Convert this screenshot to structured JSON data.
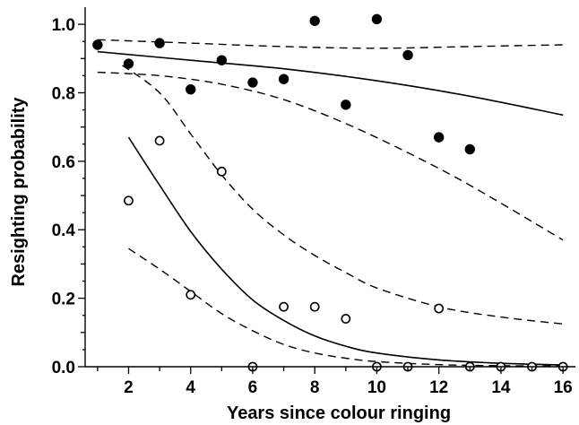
{
  "chart_data": {
    "type": "scatter",
    "title": "",
    "xlabel": "Years since colour ringing",
    "ylabel": "Resighting probability",
    "xlim": [
      0.6,
      16.4
    ],
    "ylim": [
      0.0,
      1.05
    ],
    "x_ticks": [
      2,
      4,
      6,
      8,
      10,
      12,
      14,
      16
    ],
    "x_tick_labels": [
      "2",
      "4",
      "6",
      "8",
      "10",
      "12",
      "14",
      "16"
    ],
    "y_ticks": [
      0.0,
      0.2,
      0.4,
      0.6,
      0.8,
      1.0
    ],
    "y_tick_labels": [
      "0.0",
      "0.2",
      "0.4",
      "0.6",
      "0.8",
      "1.0"
    ],
    "grid": false,
    "legend": "none",
    "colors": {
      "ink": "#000000",
      "background": "#ffffff"
    },
    "series": [
      {
        "marker": "filled-circle",
        "points": [
          {
            "x": 1,
            "y": 0.94
          },
          {
            "x": 2,
            "y": 0.885
          },
          {
            "x": 3,
            "y": 0.945
          },
          {
            "x": 4,
            "y": 0.81
          },
          {
            "x": 5,
            "y": 0.895
          },
          {
            "x": 6,
            "y": 0.83
          },
          {
            "x": 7,
            "y": 0.84
          },
          {
            "x": 8,
            "y": 1.01
          },
          {
            "x": 9,
            "y": 0.765
          },
          {
            "x": 10,
            "y": 1.015
          },
          {
            "x": 11,
            "y": 0.91
          },
          {
            "x": 12,
            "y": 0.67
          },
          {
            "x": 13,
            "y": 0.635
          }
        ],
        "fit": [
          {
            "x": 1,
            "y": 0.92
          },
          {
            "x": 4,
            "y": 0.895
          },
          {
            "x": 7,
            "y": 0.87
          },
          {
            "x": 10,
            "y": 0.835
          },
          {
            "x": 13,
            "y": 0.79
          },
          {
            "x": 16,
            "y": 0.735
          }
        ],
        "upper": [
          {
            "x": 1,
            "y": 0.955
          },
          {
            "x": 4,
            "y": 0.945
          },
          {
            "x": 7,
            "y": 0.935
          },
          {
            "x": 10,
            "y": 0.93
          },
          {
            "x": 13,
            "y": 0.935
          },
          {
            "x": 16,
            "y": 0.94
          }
        ],
        "lower": [
          {
            "x": 1,
            "y": 0.86
          },
          {
            "x": 3,
            "y": 0.85
          },
          {
            "x": 5,
            "y": 0.825
          },
          {
            "x": 7,
            "y": 0.78
          },
          {
            "x": 9,
            "y": 0.71
          },
          {
            "x": 11,
            "y": 0.625
          },
          {
            "x": 13,
            "y": 0.53
          },
          {
            "x": 16,
            "y": 0.37
          }
        ]
      },
      {
        "marker": "open-circle",
        "points": [
          {
            "x": 2,
            "y": 0.485
          },
          {
            "x": 3,
            "y": 0.66
          },
          {
            "x": 4,
            "y": 0.21
          },
          {
            "x": 5,
            "y": 0.57
          },
          {
            "x": 6,
            "y": 0.0
          },
          {
            "x": 7,
            "y": 0.175
          },
          {
            "x": 8,
            "y": 0.175
          },
          {
            "x": 9,
            "y": 0.14
          },
          {
            "x": 10,
            "y": 0.0
          },
          {
            "x": 11,
            "y": 0.0
          },
          {
            "x": 12,
            "y": 0.17
          },
          {
            "x": 13,
            "y": 0.0
          },
          {
            "x": 14,
            "y": 0.0
          },
          {
            "x": 15,
            "y": 0.0
          },
          {
            "x": 16,
            "y": 0.0
          }
        ],
        "fit": [
          {
            "x": 2,
            "y": 0.67
          },
          {
            "x": 3,
            "y": 0.53
          },
          {
            "x": 4,
            "y": 0.395
          },
          {
            "x": 5,
            "y": 0.285
          },
          {
            "x": 6,
            "y": 0.195
          },
          {
            "x": 7,
            "y": 0.135
          },
          {
            "x": 8,
            "y": 0.09
          },
          {
            "x": 9,
            "y": 0.06
          },
          {
            "x": 10,
            "y": 0.04
          },
          {
            "x": 12,
            "y": 0.02
          },
          {
            "x": 14,
            "y": 0.01
          },
          {
            "x": 16,
            "y": 0.005
          }
        ],
        "upper": [
          {
            "x": 1.8,
            "y": 0.88
          },
          {
            "x": 3,
            "y": 0.8
          },
          {
            "x": 4,
            "y": 0.68
          },
          {
            "x": 5,
            "y": 0.56
          },
          {
            "x": 6,
            "y": 0.46
          },
          {
            "x": 7,
            "y": 0.385
          },
          {
            "x": 8,
            "y": 0.325
          },
          {
            "x": 9,
            "y": 0.275
          },
          {
            "x": 10,
            "y": 0.23
          },
          {
            "x": 12,
            "y": 0.175
          },
          {
            "x": 14,
            "y": 0.145
          },
          {
            "x": 16,
            "y": 0.125
          }
        ],
        "lower": [
          {
            "x": 2,
            "y": 0.345
          },
          {
            "x": 3,
            "y": 0.285
          },
          {
            "x": 4,
            "y": 0.22
          },
          {
            "x": 5,
            "y": 0.155
          },
          {
            "x": 6,
            "y": 0.105
          },
          {
            "x": 7,
            "y": 0.065
          },
          {
            "x": 8,
            "y": 0.04
          },
          {
            "x": 9,
            "y": 0.025
          },
          {
            "x": 10,
            "y": 0.015
          },
          {
            "x": 12,
            "y": 0.006
          },
          {
            "x": 14,
            "y": 0.003
          },
          {
            "x": 16,
            "y": 0.002
          }
        ]
      }
    ]
  }
}
